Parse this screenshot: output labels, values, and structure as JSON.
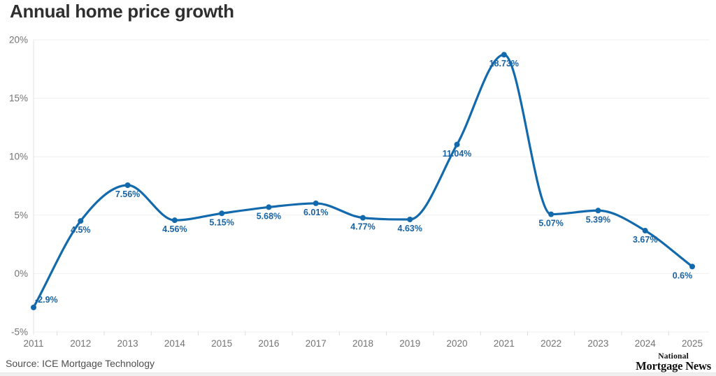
{
  "page": {
    "title": "Annual home price growth",
    "source": "Source: ICE Mortgage Technology",
    "logo_line1": "National",
    "logo_line2": "Mortgage News"
  },
  "colors": {
    "line": "#1269ac",
    "point": "#1269ac",
    "data_label": "#1a63a2",
    "grid": "#efefef",
    "axis_line": "#e3e3e3",
    "tick": "#dddddd",
    "axis_text": "#737373",
    "title_text": "#2f2f2f",
    "source_text": "#4d4d4d"
  },
  "chart_data": {
    "type": "line",
    "title": "Annual home price growth",
    "xlabel": "",
    "ylabel": "",
    "x": [
      2011,
      2012,
      2013,
      2014,
      2015,
      2016,
      2017,
      2018,
      2019,
      2020,
      2021,
      2022,
      2023,
      2024,
      2025
    ],
    "values": [
      -2.9,
      4.5,
      7.56,
      4.56,
      5.15,
      5.68,
      6.01,
      4.77,
      4.63,
      11.04,
      18.73,
      5.07,
      5.39,
      3.67,
      0.6
    ],
    "point_labels": [
      "-2.9%",
      "4.5%",
      "7.56%",
      "4.56%",
      "5.15%",
      "5.68%",
      "6.01%",
      "4.77%",
      "4.63%",
      "11.04%",
      "18.73%",
      "5.07%",
      "5.39%",
      "3.67%",
      "0.6%"
    ],
    "x_tick_labels": [
      "2011",
      "2012",
      "2013",
      "2014",
      "2015",
      "2016",
      "2017",
      "2018",
      "2019",
      "2020",
      "2021",
      "2022",
      "2023",
      "2024",
      "2025"
    ],
    "y_ticks": [
      20,
      15,
      10,
      5,
      0,
      -5
    ],
    "y_tick_labels": [
      "20%",
      "15%",
      "10%",
      "5%",
      "0%",
      "-5%"
    ],
    "ylim": [
      -5,
      20
    ],
    "grid": "horizontal",
    "legend": "none",
    "curve": "monotone"
  }
}
